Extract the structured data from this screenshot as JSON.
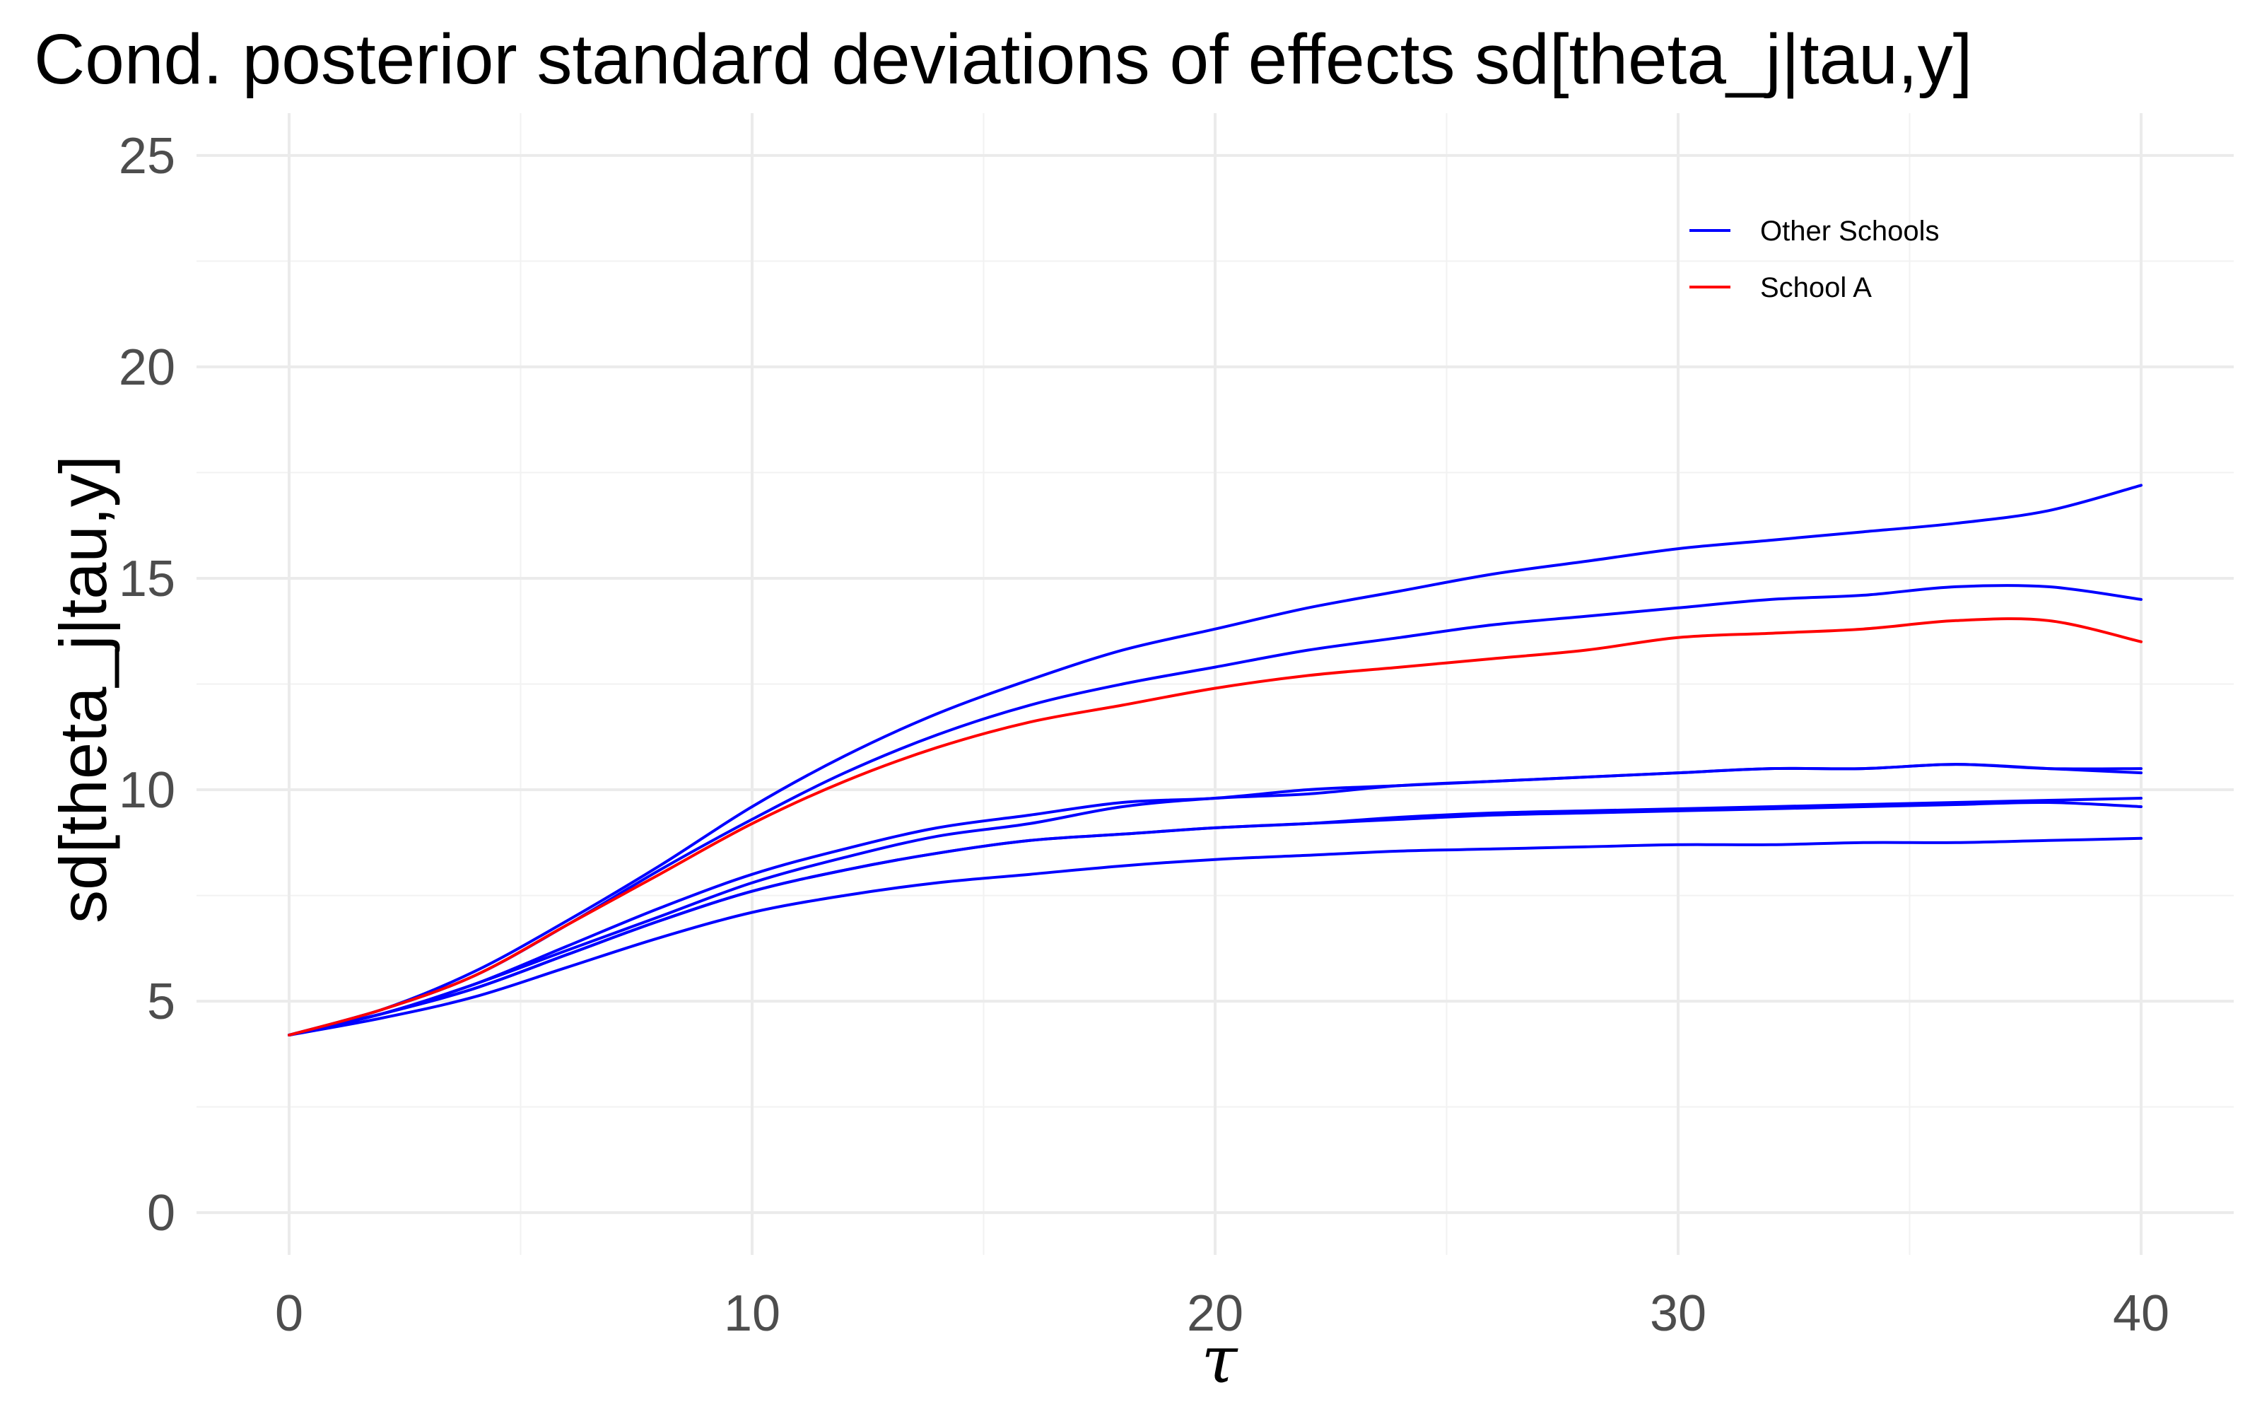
{
  "chart_data": {
    "type": "line",
    "title": "Cond. posterior standard deviations of effects sd[theta_j|tau,y]",
    "xlabel": "τ",
    "ylabel": "sd[theta_j|tau,y]",
    "xlim": [
      -2,
      42
    ],
    "ylim": [
      -1,
      26
    ],
    "x_ticks": [
      0,
      10,
      20,
      30,
      40
    ],
    "y_ticks": [
      0,
      5,
      10,
      15,
      20,
      25
    ],
    "grid": true,
    "legend_position": "top-right",
    "legend": [
      {
        "label": "Other Schools",
        "color": "#0000ff"
      },
      {
        "label": "School A",
        "color": "#ff0000"
      }
    ],
    "x": [
      0,
      2,
      4,
      6,
      8,
      10,
      12,
      14,
      16,
      18,
      20,
      22,
      24,
      26,
      28,
      30,
      32,
      34,
      36,
      38,
      40
    ],
    "series": [
      {
        "group": "Other Schools",
        "color": "#0000ff",
        "values": [
          4.2,
          4.8,
          5.7,
          6.9,
          8.2,
          9.6,
          10.8,
          11.8,
          12.6,
          13.3,
          13.8,
          14.3,
          14.7,
          15.1,
          15.4,
          15.7,
          15.9,
          16.1,
          16.3,
          16.6,
          17.2
        ]
      },
      {
        "group": "Other Schools",
        "color": "#0000ff",
        "values": [
          4.2,
          4.8,
          5.6,
          6.8,
          8.1,
          9.3,
          10.4,
          11.3,
          12.0,
          12.5,
          12.9,
          13.3,
          13.6,
          13.9,
          14.1,
          14.3,
          14.5,
          14.6,
          14.8,
          14.8,
          14.5
        ]
      },
      {
        "group": "Other Schools",
        "color": "#0000ff",
        "values": [
          4.2,
          4.7,
          5.4,
          6.3,
          7.2,
          8.0,
          8.6,
          9.1,
          9.4,
          9.7,
          9.8,
          10.0,
          10.1,
          10.2,
          10.3,
          10.4,
          10.5,
          10.5,
          10.6,
          10.5,
          10.5
        ]
      },
      {
        "group": "Other Schools",
        "color": "#0000ff",
        "values": [
          4.2,
          4.7,
          5.4,
          6.2,
          7.0,
          7.8,
          8.4,
          8.9,
          9.2,
          9.6,
          9.8,
          9.9,
          10.1,
          10.2,
          10.3,
          10.4,
          10.5,
          10.5,
          10.6,
          10.5,
          10.4
        ]
      },
      {
        "group": "Other Schools",
        "color": "#0000ff",
        "values": [
          4.2,
          4.7,
          5.3,
          6.1,
          6.9,
          7.6,
          8.1,
          8.5,
          8.8,
          8.95,
          9.1,
          9.2,
          9.35,
          9.45,
          9.5,
          9.55,
          9.6,
          9.65,
          9.7,
          9.75,
          9.8
        ]
      },
      {
        "group": "Other Schools",
        "color": "#0000ff",
        "values": [
          4.2,
          4.7,
          5.3,
          6.1,
          6.9,
          7.6,
          8.1,
          8.5,
          8.8,
          8.95,
          9.1,
          9.2,
          9.3,
          9.4,
          9.45,
          9.5,
          9.55,
          9.6,
          9.65,
          9.7,
          9.6
        ]
      },
      {
        "group": "Other Schools",
        "color": "#0000ff",
        "values": [
          4.2,
          4.6,
          5.1,
          5.8,
          6.5,
          7.1,
          7.5,
          7.8,
          8.0,
          8.2,
          8.35,
          8.45,
          8.55,
          8.6,
          8.65,
          8.7,
          8.7,
          8.75,
          8.75,
          8.8,
          8.85
        ]
      },
      {
        "group": "School A",
        "color": "#ff0000",
        "values": [
          4.2,
          4.8,
          5.6,
          6.8,
          8.0,
          9.2,
          10.2,
          11.0,
          11.6,
          12.0,
          12.4,
          12.7,
          12.9,
          13.1,
          13.3,
          13.6,
          13.7,
          13.8,
          14.0,
          14.0,
          13.5
        ]
      }
    ]
  }
}
